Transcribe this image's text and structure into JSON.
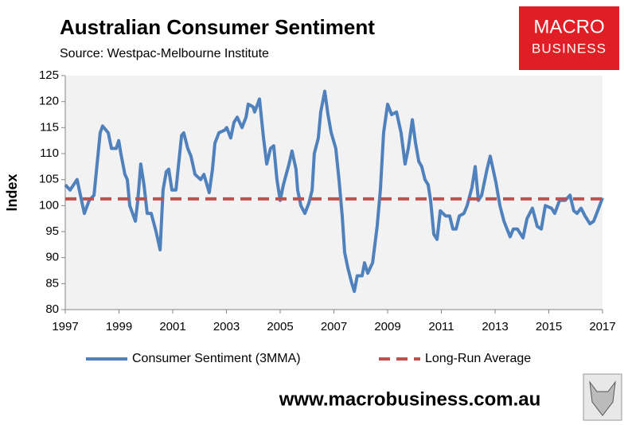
{
  "chart_data": {
    "type": "line",
    "title": "Australian Consumer Sentiment",
    "subtitle": "Source: Westpac-Melbourne Institute",
    "ylabel": "Index",
    "xlim": [
      1997,
      2017
    ],
    "xticks": [
      1997,
      1999,
      2001,
      2003,
      2005,
      2007,
      2009,
      2011,
      2013,
      2015,
      2017
    ],
    "ylim": [
      80,
      125
    ],
    "yticks": [
      80,
      85,
      90,
      95,
      100,
      105,
      110,
      115,
      120,
      125
    ],
    "grid": false,
    "legend": "bottom",
    "series": [
      {
        "name": "Consumer Sentiment (3MMA)",
        "color": "#4f81bd",
        "dash": false,
        "x": [
          1997.0,
          1997.18,
          1997.44,
          1997.71,
          1997.89,
          1998.07,
          1998.3,
          1998.39,
          1998.6,
          1998.72,
          1998.9,
          1998.99,
          1999.07,
          1999.22,
          1999.31,
          1999.4,
          1999.61,
          1999.7,
          1999.81,
          1999.93,
          2000.05,
          2000.2,
          2000.38,
          2000.53,
          2000.64,
          2000.76,
          2000.85,
          2000.97,
          2001.12,
          2001.33,
          2001.41,
          2001.56,
          2001.68,
          2001.83,
          2002.04,
          2002.16,
          2002.36,
          2002.48,
          2002.57,
          2002.72,
          2002.93,
          2003.01,
          2003.16,
          2003.28,
          2003.4,
          2003.58,
          2003.73,
          2003.81,
          2003.99,
          2004.05,
          2004.23,
          2004.38,
          2004.5,
          2004.64,
          2004.76,
          2004.88,
          2005.0,
          2005.12,
          2005.33,
          2005.44,
          2005.59,
          2005.65,
          2005.77,
          2005.92,
          2006.07,
          2006.19,
          2006.27,
          2006.42,
          2006.51,
          2006.66,
          2006.78,
          2006.9,
          2007.07,
          2007.19,
          2007.31,
          2007.4,
          2007.52,
          2007.67,
          2007.76,
          2007.87,
          2008.05,
          2008.14,
          2008.26,
          2008.44,
          2008.61,
          2008.73,
          2008.85,
          2009.0,
          2009.15,
          2009.33,
          2009.5,
          2009.65,
          2009.77,
          2009.92,
          2010.04,
          2010.16,
          2010.27,
          2010.39,
          2010.51,
          2010.6,
          2010.72,
          2010.84,
          2010.96,
          2011.16,
          2011.31,
          2011.43,
          2011.55,
          2011.67,
          2011.84,
          2011.96,
          2012.14,
          2012.26,
          2012.38,
          2012.5,
          2012.7,
          2012.82,
          2013.03,
          2013.18,
          2013.33,
          2013.56,
          2013.68,
          2013.83,
          2014.04,
          2014.19,
          2014.39,
          2014.57,
          2014.72,
          2014.87,
          2015.1,
          2015.22,
          2015.4,
          2015.61,
          2015.79,
          2015.93,
          2016.05,
          2016.2,
          2016.35,
          2016.53,
          2016.67,
          2016.82,
          2017.0
        ],
        "values": [
          104,
          103,
          105,
          98.5,
          101,
          102,
          114,
          115.3,
          114,
          111,
          111,
          112.5,
          110,
          106,
          105,
          100,
          97,
          101,
          108,
          104,
          98.5,
          98.5,
          95,
          91.5,
          103,
          106.5,
          107,
          103,
          103,
          113.5,
          114,
          111,
          109.5,
          106,
          105,
          106,
          102.5,
          107,
          112,
          114,
          114.5,
          115,
          113,
          116,
          117,
          115,
          117,
          119.5,
          119,
          118,
          120.5,
          113,
          108,
          111,
          111.5,
          105,
          101,
          104,
          108,
          110.5,
          107,
          103,
          100,
          98.5,
          100.5,
          103,
          110,
          113,
          118,
          122,
          117.5,
          114,
          111,
          105,
          98,
          91,
          88,
          85,
          83.5,
          86.5,
          86.5,
          89,
          87,
          89,
          96,
          103,
          114,
          119.5,
          117.5,
          118,
          114,
          108,
          111,
          116.5,
          112,
          108.5,
          107.5,
          105,
          104,
          101,
          94.5,
          93.5,
          99,
          98,
          98,
          95.5,
          95.5,
          98,
          98.5,
          100,
          103.5,
          107.5,
          101,
          102,
          107,
          109.5,
          104.5,
          100,
          97,
          94,
          95.5,
          95.5,
          93.8,
          97.5,
          99.5,
          96,
          95.5,
          100,
          99.5,
          98.5,
          101,
          101,
          102,
          99,
          98.5,
          99.5,
          98,
          96.5,
          97,
          99,
          101.5
        ]
      },
      {
        "name": "Long-Run Average",
        "color": "#c0504d",
        "dash": true,
        "x": [
          1997,
          2017
        ],
        "values": [
          101.3,
          101.3
        ]
      }
    ]
  },
  "logo": {
    "line1": "MACRO",
    "line2": "BUSINESS"
  },
  "footer": "www.macrobusiness.com.au"
}
